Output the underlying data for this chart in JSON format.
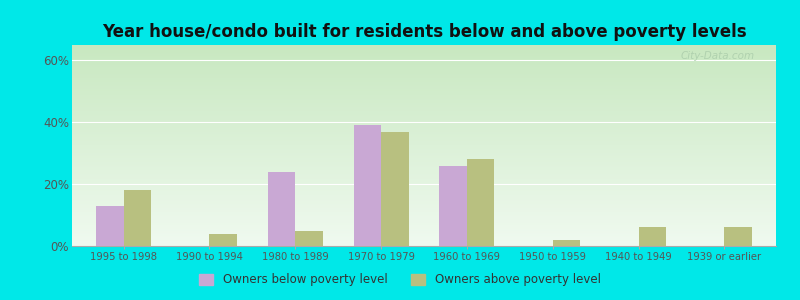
{
  "title": "Year house/condo built for residents below and above poverty levels",
  "categories": [
    "1995 to 1998",
    "1990 to 1994",
    "1980 to 1989",
    "1970 to 1979",
    "1960 to 1969",
    "1950 to 1959",
    "1940 to 1949",
    "1939 or earlier"
  ],
  "below_poverty": [
    13,
    0,
    24,
    39,
    26,
    0,
    0,
    0
  ],
  "above_poverty": [
    18,
    4,
    5,
    37,
    28,
    2,
    6,
    6
  ],
  "below_color": "#c9a8d4",
  "above_color": "#b8c080",
  "ylim": [
    0,
    65
  ],
  "yticks": [
    0,
    20,
    40,
    60
  ],
  "ytick_labels": [
    "0%",
    "20%",
    "40%",
    "60%"
  ],
  "legend_below": "Owners below poverty level",
  "legend_above": "Owners above poverty level",
  "title_fontsize": 12,
  "outer_bg": "#00e8e8",
  "bar_width": 0.32,
  "grad_top": "#c8e8c0",
  "grad_bottom": "#f0faf0",
  "grid_color": "#d8eed8",
  "watermark": "City-Data.com"
}
